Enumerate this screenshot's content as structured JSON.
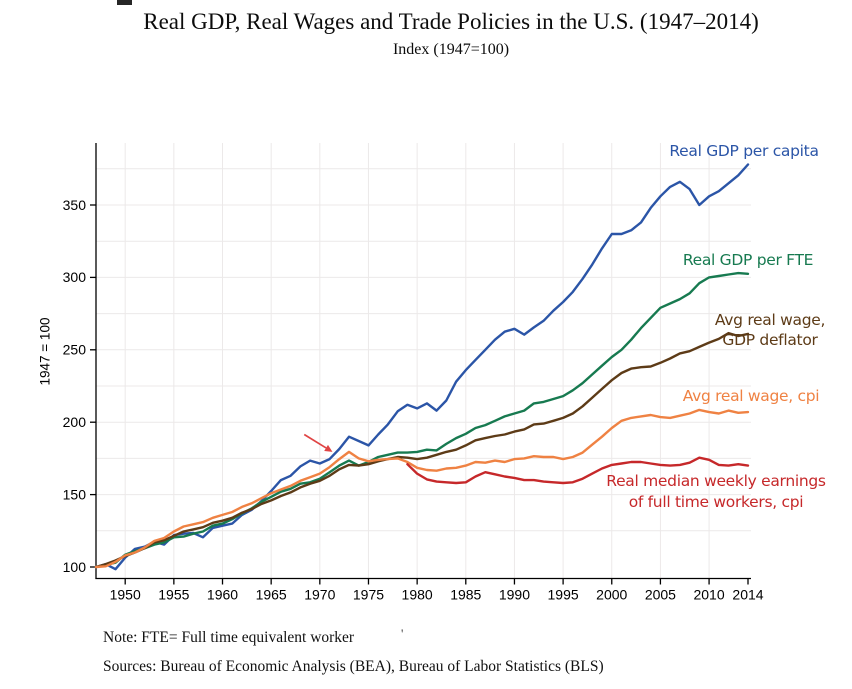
{
  "page": {
    "note": "Note: FTE= Full time equivalent worker",
    "note_stray_mark": "'",
    "sources": "Sources: Bureau of Economic Analysis (BEA), Bureau of Labor Statistics (BLS)"
  },
  "chart_data": {
    "type": "line",
    "title": "Real GDP, Real Wages and Trade Policies in the U.S. (1947–2014)",
    "subtitle": "Index (1947=100)",
    "ylabel": "1947 = 100",
    "xlabel": "",
    "x_unit": "year",
    "x_ticks": [
      1950,
      1955,
      1960,
      1965,
      1970,
      1975,
      1980,
      1985,
      1990,
      1995,
      2000,
      2005,
      2010,
      2014
    ],
    "y_ticks": [
      100,
      150,
      200,
      250,
      300,
      350
    ],
    "x_range": [
      1947,
      2014
    ],
    "y_range": [
      92,
      393
    ],
    "grid": "on",
    "grid_color": "#ece9e9",
    "axis_color": "#000000",
    "legend_position": "labels-at-line-ends",
    "series": [
      {
        "name": "Real GDP per capita",
        "label_lines": [
          "Real GDP per capita"
        ],
        "color": "#2b55a7",
        "start_year": 1947,
        "values": [
          100,
          102,
          98.5,
          106.5,
          112.5,
          114,
          117.5,
          115.5,
          122,
          123,
          123.5,
          120.5,
          127,
          128.5,
          130,
          136,
          139.5,
          145.5,
          152.5,
          160,
          163,
          169.5,
          173.5,
          171.5,
          174.5,
          181.5,
          190,
          187,
          184,
          191.5,
          198.5,
          207.5,
          212,
          209.5,
          213,
          208,
          215,
          228,
          236,
          243,
          250,
          257,
          262.5,
          264.5,
          260.5,
          265.5,
          270,
          277,
          283,
          290,
          299,
          309,
          320,
          330,
          330,
          332.5,
          338,
          348,
          356,
          362.5,
          366,
          361,
          350,
          356,
          359.5,
          365,
          370.5,
          378
        ]
      },
      {
        "name": "Real GDP per FTE",
        "label_lines": [
          "Real GDP per FTE"
        ],
        "color": "#177a50",
        "start_year": 1947,
        "values": [
          100,
          101.5,
          103,
          108.5,
          111,
          113,
          115.5,
          117,
          120.5,
          121,
          123,
          124.5,
          128.5,
          130,
          133,
          137,
          140.5,
          145,
          148.5,
          152,
          154,
          157.5,
          158.5,
          161,
          165.5,
          170,
          173.5,
          170,
          172.5,
          176,
          177.5,
          179,
          179,
          179.5,
          181,
          180.5,
          185,
          189,
          192,
          196,
          198,
          201,
          204,
          206,
          208,
          213,
          214,
          216,
          218,
          222,
          227,
          233,
          239,
          245,
          250,
          257,
          265,
          272,
          279,
          282,
          285,
          289,
          296,
          300,
          301,
          302,
          303,
          302.5
        ]
      },
      {
        "name": "Avg real wage, GDP deflator",
        "label_lines": [
          "Avg real wage,",
          "GDP deflator"
        ],
        "color": "#5d3b17",
        "start_year": 1947,
        "values": [
          100,
          102,
          104.5,
          107.5,
          110,
          113,
          117,
          118.5,
          121.5,
          124.5,
          126,
          127.5,
          130.5,
          132,
          134,
          137.5,
          140,
          143.5,
          146,
          149,
          151.5,
          155,
          157.5,
          159.5,
          163,
          167.5,
          170.5,
          170,
          171,
          173,
          174.5,
          176,
          175.5,
          174.5,
          175.5,
          177.5,
          179.5,
          181,
          184,
          187.5,
          189,
          190.5,
          191.5,
          193.5,
          195,
          198.5,
          199,
          201,
          203,
          206,
          211,
          217,
          223,
          229,
          234,
          237,
          238,
          238.5,
          241,
          244,
          247.5,
          249,
          252,
          255,
          257.5,
          261.5,
          259.5,
          261
        ]
      },
      {
        "name": "Avg real wage, cpi",
        "label_lines": [
          "Avg real wage, cpi"
        ],
        "color": "#ef8243",
        "start_year": 1947,
        "values": [
          100,
          100.5,
          103.5,
          108,
          110,
          113.5,
          118,
          120,
          124.5,
          128,
          129.5,
          131,
          134,
          136,
          138,
          141.5,
          144,
          147.5,
          151,
          153.5,
          156,
          159.5,
          162,
          164.5,
          169,
          174.5,
          179.5,
          175,
          173,
          174,
          174.5,
          175,
          172.5,
          168.5,
          167,
          166.5,
          168,
          168.5,
          170,
          172.5,
          172,
          173.5,
          172.5,
          174.5,
          175,
          176.5,
          176,
          176,
          174.5,
          176,
          179,
          184.5,
          190,
          196,
          201,
          203,
          204,
          205,
          203.5,
          203,
          204.5,
          206,
          208.5,
          207,
          206,
          208,
          206.5,
          207
        ]
      },
      {
        "name": "Real median weekly earnings of full time workers, cpi",
        "label_lines": [
          "Real median weekly earnings",
          "of full time workers, cpi"
        ],
        "color": "#c6282a",
        "start_year": 1979,
        "values": [
          171,
          164.5,
          160.5,
          159,
          158.5,
          158,
          158.5,
          162.5,
          165.5,
          164,
          162.5,
          161.5,
          160,
          160,
          159,
          158.5,
          158,
          158.5,
          161,
          164.5,
          168,
          170.5,
          171.5,
          172.5,
          172.5,
          171.5,
          170.5,
          170,
          170.5,
          172,
          175.5,
          174,
          170.5,
          170,
          171,
          170
        ]
      }
    ],
    "annotation_arrow": {
      "from_year": 1968.4,
      "from_value": 191.5,
      "to_year": 1971.3,
      "to_value": 179.5,
      "color": "#e04444"
    }
  }
}
